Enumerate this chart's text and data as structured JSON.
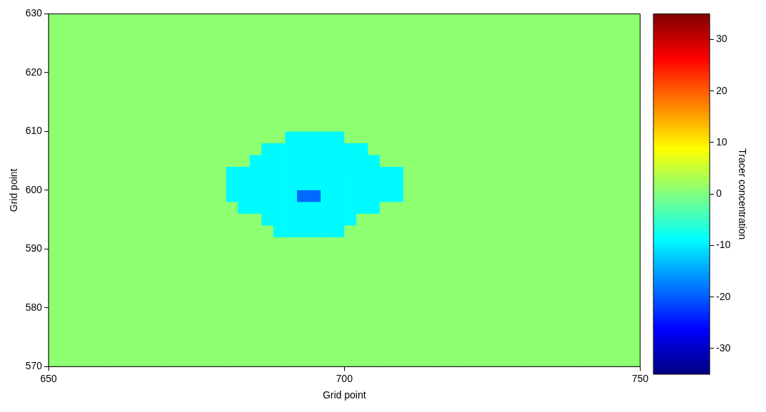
{
  "chart_data": {
    "type": "heatmap",
    "xlabel": "Grid point",
    "ylabel": "Grid point",
    "clabel": "Tracer concentration",
    "xlim": [
      650,
      750
    ],
    "xticks": [
      650,
      700,
      750
    ],
    "ylim": [
      570,
      630
    ],
    "yticks": [
      570,
      580,
      590,
      600,
      610,
      620,
      630
    ],
    "clim": [
      -35,
      35
    ],
    "cticks": [
      -30,
      -20,
      -10,
      0,
      10,
      20,
      30
    ],
    "cells": [
      [
        1,
        1,
        1,
        1,
        1,
        1,
        1,
        1,
        1,
        1,
        1,
        1,
        1,
        1,
        1,
        1,
        1,
        1,
        1,
        1,
        1,
        1,
        1,
        1,
        1,
        1,
        1,
        1,
        1,
        1,
        1,
        1,
        1,
        1,
        1,
        1,
        1,
        1,
        1,
        1,
        1,
        1,
        1,
        1,
        1,
        1,
        1,
        1,
        1,
        1
      ],
      [
        1,
        1,
        1,
        1,
        1,
        1,
        1,
        1,
        1,
        1,
        1,
        1,
        1,
        1,
        1,
        1,
        1,
        1,
        1,
        1,
        1,
        1,
        1,
        1,
        1,
        1,
        1,
        1,
        1,
        1,
        1,
        1,
        1,
        1,
        1,
        1,
        1,
        1,
        1,
        1,
        1,
        1,
        1,
        1,
        1,
        1,
        1,
        1,
        1,
        1
      ],
      [
        1,
        1,
        1,
        1,
        1,
        1,
        1,
        1,
        1,
        1,
        1,
        1,
        1,
        1,
        1,
        1,
        1,
        1,
        1,
        1,
        1,
        1,
        1,
        1,
        1,
        1,
        1,
        1,
        1,
        1,
        1,
        1,
        1,
        1,
        1,
        1,
        1,
        1,
        1,
        1,
        1,
        1,
        1,
        1,
        1,
        1,
        1,
        1,
        1,
        1
      ],
      [
        1,
        1,
        1,
        1,
        1,
        1,
        1,
        1,
        1,
        1,
        1,
        1,
        1,
        1,
        1,
        1,
        1,
        1,
        1,
        1,
        1,
        1,
        1,
        1,
        1,
        1,
        1,
        1,
        1,
        1,
        1,
        1,
        1,
        1,
        1,
        1,
        1,
        1,
        1,
        1,
        1,
        1,
        1,
        1,
        1,
        1,
        1,
        1,
        1,
        1
      ],
      [
        1,
        1,
        1,
        1,
        1,
        1,
        1,
        1,
        1,
        1,
        1,
        1,
        1,
        1,
        1,
        1,
        1,
        1,
        1,
        1,
        1,
        1,
        1,
        1,
        1,
        1,
        1,
        1,
        1,
        1,
        1,
        1,
        1,
        1,
        1,
        1,
        1,
        1,
        1,
        1,
        1,
        1,
        1,
        1,
        1,
        1,
        1,
        1,
        1,
        1
      ],
      [
        1,
        1,
        1,
        1,
        1,
        1,
        1,
        1,
        1,
        1,
        1,
        1,
        1,
        1,
        1,
        1,
        1,
        1,
        1,
        1,
        1,
        1,
        1,
        1,
        1,
        1,
        1,
        1,
        1,
        1,
        1,
        1,
        1,
        1,
        1,
        1,
        1,
        1,
        1,
        1,
        1,
        1,
        1,
        1,
        1,
        1,
        1,
        1,
        1,
        1
      ],
      [
        1,
        1,
        1,
        1,
        1,
        1,
        1,
        1,
        1,
        1,
        1,
        1,
        1,
        1,
        1,
        1,
        1,
        1,
        1,
        1,
        1,
        1,
        1,
        1,
        1,
        1,
        1,
        1,
        1,
        1,
        1,
        1,
        1,
        1,
        1,
        1,
        1,
        1,
        1,
        1,
        1,
        1,
        1,
        1,
        1,
        1,
        1,
        1,
        1,
        1
      ],
      [
        1,
        1,
        1,
        1,
        1,
        1,
        1,
        1,
        1,
        1,
        1,
        1,
        1,
        1,
        1,
        1,
        1,
        1,
        1,
        1,
        1,
        1,
        1,
        1,
        1,
        1,
        1,
        1,
        1,
        1,
        1,
        1,
        1,
        1,
        1,
        1,
        1,
        1,
        1,
        1,
        1,
        1,
        1,
        1,
        1,
        1,
        1,
        1,
        1,
        1
      ],
      [
        1,
        1,
        1,
        1,
        1,
        1,
        1,
        1,
        1,
        1,
        1,
        1,
        1,
        1,
        1,
        1,
        1,
        1,
        1,
        1,
        1,
        1,
        1,
        1,
        1,
        1,
        1,
        1,
        1,
        1,
        1,
        1,
        1,
        1,
        1,
        1,
        1,
        1,
        1,
        1,
        1,
        1,
        1,
        1,
        1,
        1,
        1,
        1,
        1,
        1
      ],
      [
        1,
        1,
        1,
        1,
        1,
        1,
        1,
        1,
        1,
        1,
        1,
        1,
        1,
        1,
        1,
        1,
        1,
        1,
        1,
        1,
        1,
        1,
        1,
        1,
        1,
        1,
        1,
        1,
        1,
        1,
        1,
        1,
        1,
        1,
        1,
        1,
        1,
        1,
        1,
        1,
        1,
        1,
        1,
        1,
        1,
        1,
        1,
        1,
        1,
        1
      ],
      [
        1,
        1,
        1,
        1,
        1,
        1,
        1,
        1,
        1,
        1,
        1,
        1,
        1,
        1,
        1,
        1,
        1,
        1,
        1,
        1,
        -9,
        -9,
        -9,
        -9,
        -9,
        1,
        1,
        1,
        1,
        1,
        1,
        1,
        1,
        1,
        1,
        1,
        1,
        1,
        1,
        1,
        1,
        1,
        1,
        1,
        1,
        1,
        1,
        1,
        1,
        1
      ],
      [
        1,
        1,
        1,
        1,
        1,
        1,
        1,
        1,
        1,
        1,
        1,
        1,
        1,
        1,
        1,
        1,
        1,
        1,
        -9,
        -9,
        -9,
        -9,
        -9,
        -9,
        -9,
        -9,
        -9,
        1,
        1,
        1,
        1,
        1,
        1,
        1,
        1,
        1,
        1,
        1,
        1,
        1,
        1,
        1,
        1,
        1,
        1,
        1,
        1,
        1,
        1,
        1
      ],
      [
        1,
        1,
        1,
        1,
        1,
        1,
        1,
        1,
        1,
        1,
        1,
        1,
        1,
        1,
        1,
        1,
        1,
        -9,
        -9,
        -9,
        -9,
        -9,
        -9,
        -9,
        -9,
        -9,
        -9,
        -9,
        1,
        1,
        1,
        1,
        1,
        1,
        1,
        1,
        1,
        1,
        1,
        1,
        1,
        1,
        1,
        1,
        1,
        1,
        1,
        1,
        1,
        1
      ],
      [
        1,
        1,
        1,
        1,
        1,
        1,
        1,
        1,
        1,
        1,
        1,
        1,
        1,
        1,
        1,
        -9,
        -9,
        -9,
        -9,
        -9,
        -9,
        -9,
        -9,
        -9,
        -9,
        -9,
        -9,
        -9,
        -9,
        -9,
        1,
        1,
        1,
        1,
        1,
        1,
        1,
        1,
        1,
        1,
        1,
        1,
        1,
        1,
        1,
        1,
        1,
        1,
        1,
        1
      ],
      [
        1,
        1,
        1,
        1,
        1,
        1,
        1,
        1,
        1,
        1,
        1,
        1,
        1,
        1,
        1,
        -9,
        -9,
        -9,
        -9,
        -9,
        -9,
        -9,
        -9,
        -9,
        -9,
        -9,
        -9,
        -9,
        -9,
        -9,
        1,
        1,
        1,
        1,
        1,
        1,
        1,
        1,
        1,
        1,
        1,
        1,
        1,
        1,
        1,
        1,
        1,
        1,
        1,
        1
      ],
      [
        1,
        1,
        1,
        1,
        1,
        1,
        1,
        1,
        1,
        1,
        1,
        1,
        1,
        1,
        1,
        -9,
        -9,
        -9,
        -9,
        -9,
        -9,
        -19,
        -19,
        -9,
        -9,
        -9,
        -9,
        -9,
        -9,
        -9,
        1,
        1,
        1,
        1,
        1,
        1,
        1,
        1,
        1,
        1,
        1,
        1,
        1,
        1,
        1,
        1,
        1,
        1,
        1,
        1
      ],
      [
        1,
        1,
        1,
        1,
        1,
        1,
        1,
        1,
        1,
        1,
        1,
        1,
        1,
        1,
        1,
        1,
        -9,
        -9,
        -9,
        -9,
        -9,
        -9,
        -9,
        -9,
        -9,
        -9,
        -9,
        -9,
        1,
        1,
        1,
        1,
        1,
        1,
        1,
        1,
        1,
        1,
        1,
        1,
        1,
        1,
        1,
        1,
        1,
        1,
        1,
        1,
        1,
        1
      ],
      [
        1,
        1,
        1,
        1,
        1,
        1,
        1,
        1,
        1,
        1,
        1,
        1,
        1,
        1,
        1,
        1,
        1,
        1,
        -9,
        -9,
        -9,
        -9,
        -9,
        -9,
        -9,
        -9,
        1,
        1,
        1,
        1,
        1,
        1,
        1,
        1,
        1,
        1,
        1,
        1,
        1,
        1,
        1,
        1,
        1,
        1,
        1,
        1,
        1,
        1,
        1,
        1
      ],
      [
        1,
        1,
        1,
        1,
        1,
        1,
        1,
        1,
        1,
        1,
        1,
        1,
        1,
        1,
        1,
        1,
        1,
        1,
        1,
        -9,
        -9,
        -9,
        -9,
        -9,
        -9,
        1,
        1,
        1,
        1,
        1,
        1,
        1,
        1,
        1,
        1,
        1,
        1,
        1,
        1,
        1,
        1,
        1,
        1,
        1,
        1,
        1,
        1,
        1,
        1,
        1
      ],
      [
        1,
        1,
        1,
        1,
        1,
        1,
        1,
        1,
        1,
        1,
        1,
        1,
        1,
        1,
        1,
        1,
        1,
        1,
        1,
        1,
        1,
        1,
        1,
        1,
        1,
        1,
        1,
        1,
        1,
        1,
        1,
        1,
        1,
        1,
        1,
        1,
        1,
        1,
        1,
        1,
        1,
        1,
        1,
        1,
        1,
        1,
        1,
        1,
        1,
        1
      ],
      [
        1,
        1,
        1,
        1,
        1,
        1,
        1,
        1,
        1,
        1,
        1,
        1,
        1,
        1,
        1,
        1,
        1,
        1,
        1,
        1,
        1,
        1,
        1,
        1,
        1,
        1,
        1,
        1,
        1,
        1,
        1,
        1,
        1,
        1,
        1,
        1,
        1,
        1,
        1,
        1,
        1,
        1,
        1,
        1,
        1,
        1,
        1,
        1,
        1,
        1
      ],
      [
        1,
        1,
        1,
        1,
        1,
        1,
        1,
        1,
        1,
        1,
        1,
        1,
        1,
        1,
        1,
        1,
        1,
        1,
        1,
        1,
        1,
        1,
        1,
        1,
        1,
        1,
        1,
        1,
        1,
        1,
        1,
        1,
        1,
        1,
        1,
        1,
        1,
        1,
        1,
        1,
        1,
        1,
        1,
        1,
        1,
        1,
        1,
        1,
        1,
        1
      ],
      [
        1,
        1,
        1,
        1,
        1,
        1,
        1,
        1,
        1,
        1,
        1,
        1,
        1,
        1,
        1,
        1,
        1,
        1,
        1,
        1,
        1,
        1,
        1,
        1,
        1,
        1,
        1,
        1,
        1,
        1,
        1,
        1,
        1,
        1,
        1,
        1,
        1,
        1,
        1,
        1,
        1,
        1,
        1,
        1,
        1,
        1,
        1,
        1,
        1,
        1
      ],
      [
        1,
        1,
        1,
        1,
        1,
        1,
        1,
        1,
        1,
        1,
        1,
        1,
        1,
        1,
        1,
        1,
        1,
        1,
        1,
        1,
        1,
        1,
        1,
        1,
        1,
        1,
        1,
        1,
        1,
        1,
        1,
        1,
        1,
        1,
        1,
        1,
        1,
        1,
        1,
        1,
        1,
        1,
        1,
        1,
        1,
        1,
        1,
        1,
        1,
        1
      ],
      [
        1,
        1,
        1,
        1,
        1,
        1,
        1,
        1,
        1,
        1,
        1,
        1,
        1,
        1,
        1,
        1,
        1,
        1,
        1,
        1,
        1,
        1,
        1,
        1,
        1,
        1,
        1,
        1,
        1,
        1,
        1,
        1,
        1,
        1,
        1,
        1,
        1,
        1,
        1,
        1,
        1,
        1,
        1,
        1,
        1,
        1,
        1,
        1,
        1,
        1
      ],
      [
        1,
        1,
        1,
        1,
        1,
        1,
        1,
        1,
        1,
        1,
        1,
        1,
        1,
        1,
        1,
        1,
        1,
        1,
        1,
        1,
        1,
        1,
        1,
        1,
        1,
        1,
        1,
        1,
        1,
        1,
        1,
        1,
        1,
        1,
        1,
        1,
        1,
        1,
        1,
        1,
        1,
        1,
        1,
        1,
        1,
        1,
        1,
        1,
        1,
        1
      ],
      [
        1,
        1,
        1,
        1,
        1,
        1,
        1,
        1,
        1,
        1,
        1,
        1,
        1,
        1,
        1,
        1,
        1,
        1,
        1,
        1,
        1,
        1,
        1,
        1,
        1,
        1,
        1,
        1,
        1,
        1,
        1,
        1,
        1,
        1,
        1,
        1,
        1,
        1,
        1,
        1,
        1,
        1,
        1,
        1,
        1,
        1,
        1,
        1,
        1,
        1
      ],
      [
        1,
        1,
        1,
        1,
        1,
        1,
        1,
        1,
        1,
        1,
        1,
        1,
        1,
        1,
        1,
        1,
        1,
        1,
        1,
        1,
        1,
        1,
        1,
        1,
        1,
        1,
        1,
        1,
        1,
        1,
        1,
        1,
        1,
        1,
        1,
        1,
        1,
        1,
        1,
        1,
        1,
        1,
        1,
        1,
        1,
        1,
        1,
        1,
        1,
        1
      ],
      [
        1,
        1,
        1,
        1,
        1,
        1,
        1,
        1,
        1,
        1,
        1,
        1,
        1,
        1,
        1,
        1,
        1,
        1,
        1,
        1,
        1,
        1,
        1,
        1,
        1,
        1,
        1,
        1,
        1,
        1,
        1,
        1,
        1,
        1,
        1,
        1,
        1,
        1,
        1,
        1,
        1,
        1,
        1,
        1,
        1,
        1,
        1,
        1,
        1,
        1
      ],
      [
        1,
        1,
        1,
        1,
        1,
        1,
        1,
        1,
        1,
        1,
        1,
        1,
        1,
        1,
        1,
        1,
        1,
        1,
        1,
        1,
        1,
        1,
        1,
        1,
        1,
        1,
        1,
        1,
        1,
        1,
        1,
        1,
        1,
        1,
        1,
        1,
        1,
        1,
        1,
        1,
        1,
        1,
        1,
        1,
        1,
        1,
        1,
        1,
        1,
        1
      ]
    ]
  }
}
